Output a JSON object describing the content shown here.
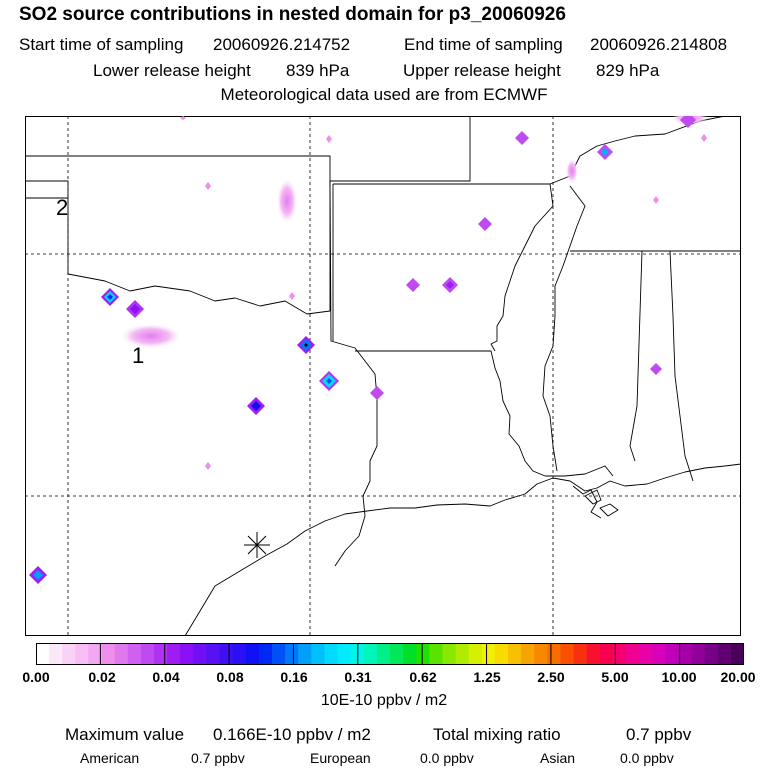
{
  "header": {
    "title": "SO2 source contributions in nested domain for p3_20060926",
    "start_label": "Start time of sampling",
    "start_value": "20060926.214752",
    "end_label": "End time of sampling",
    "end_value": "20060926.214808",
    "lower_label": "Lower release height",
    "lower_value": "839 hPa",
    "upper_label": "Upper release height",
    "upper_value": "829 hPa",
    "met": "Meteorological data used are from ECMWF"
  },
  "map": {
    "labels": [
      "1",
      "2"
    ],
    "release_site_marker": "asterisk-icon"
  },
  "colorbar": {
    "tick_labels": [
      "0.00",
      "0.02",
      "0.04",
      "0.08",
      "0.16",
      "0.31",
      "0.62",
      "1.25",
      "2.50",
      "5.00",
      "10.00",
      "20.00"
    ],
    "units": "10E-10 ppbv / m2",
    "colors": [
      "#ffffff",
      "#fde8fb",
      "#fbd2f7",
      "#f8bdf4",
      "#f3a6f1",
      "#ee8fee",
      "#e079ee",
      "#d060f0",
      "#c04af2",
      "#b032f3",
      "#a01cf5",
      "#8a10f5",
      "#7010f5",
      "#5810f5",
      "#4010f5",
      "#2a10f5",
      "#1010f5",
      "#0028f5",
      "#0050f7",
      "#0078f8",
      "#00a0fa",
      "#00c0fb",
      "#00dafc",
      "#00ecfd",
      "#00f5e8",
      "#00f5b8",
      "#00f088",
      "#00e858",
      "#00e028",
      "#20e000",
      "#58e400",
      "#88e800",
      "#b0ec00",
      "#d4f000",
      "#f0f000",
      "#f8dc00",
      "#f8c000",
      "#f8a400",
      "#f88800",
      "#f86c00",
      "#f85000",
      "#f83010",
      "#f81030",
      "#f80050",
      "#f40070",
      "#f00090",
      "#e800a8",
      "#d800b8",
      "#c000b8",
      "#a800a8",
      "#900098",
      "#780088",
      "#600070",
      "#480058"
    ]
  },
  "stats": {
    "max_label": "Maximum value",
    "max_value": "0.166E-10 ppbv / m2",
    "total_label": "Total mixing ratio",
    "total_value": "0.7 ppbv",
    "american_label": "American",
    "american_value": "0.7 ppbv",
    "european_label": "European",
    "european_value": "0.0 ppbv",
    "asian_label": "Asian",
    "asian_value": "0.0 ppbv"
  }
}
